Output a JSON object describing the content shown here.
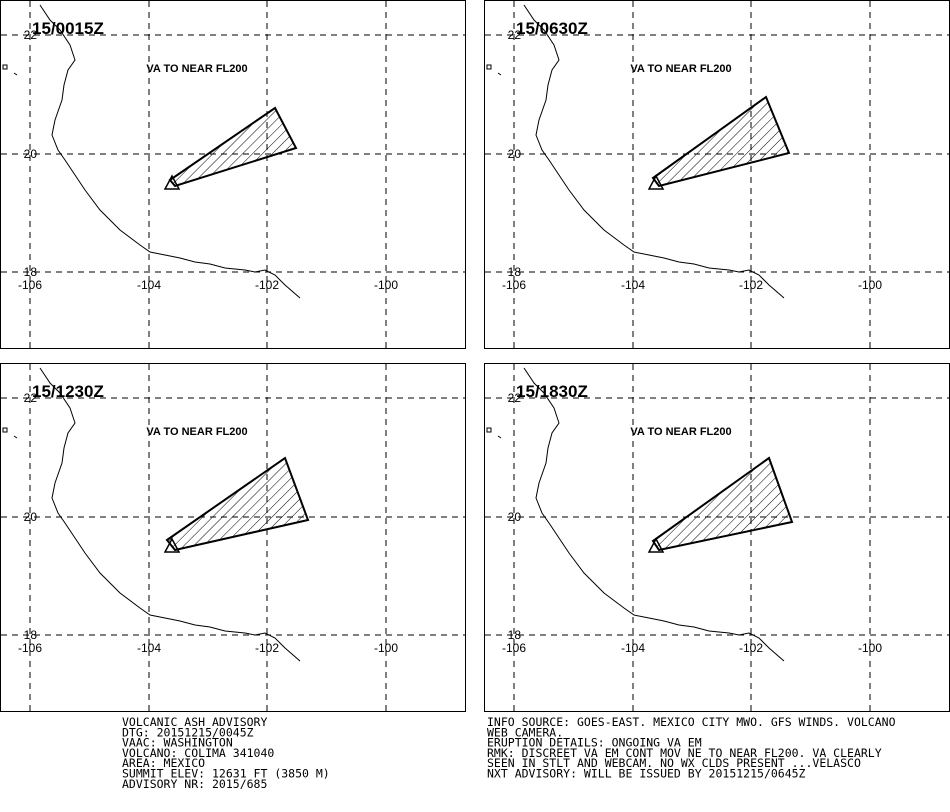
{
  "panels": [
    {
      "time": "15/0015Z",
      "annotation": "VA TO NEAR FL200"
    },
    {
      "time": "15/0630Z",
      "annotation": "VA TO NEAR FL200"
    },
    {
      "time": "15/1230Z",
      "annotation": "VA TO NEAR FL200"
    },
    {
      "time": "15/1830Z",
      "annotation": "VA TO NEAR FL200"
    }
  ],
  "axes": {
    "lat_labels": [
      "22",
      "20",
      "18"
    ],
    "lon_labels": [
      "-106",
      "-104",
      "-102",
      "-100"
    ]
  },
  "advisory": {
    "left": [
      "VOLCANIC ASH ADVISORY",
      "DTG: 20151215/0045Z",
      "VAAC: WASHINGTON",
      "VOLCANO: COLIMA 341040",
      "AREA: MEXICO",
      "SUMMIT ELEV: 12631 FT (3850 M)",
      "ADVISORY NR: 2015/685"
    ],
    "right": [
      "INFO SOURCE: GOES-EAST. MEXICO CITY MWO. GFS WINDS. VOLCANO",
      "WEB CAMERA.",
      "ERUPTION DETAILS: ONGOING VA EM",
      "RMK: DISCREET VA EM CONT MOV NE TO NEAR FL200. VA CLEARLY",
      "SEEN IN STLT AND WEBCAM. NO WX CLDS PRESENT ...VELASCO",
      "NXT ADVISORY: WILL BE ISSUED BY 20151215/0645Z"
    ]
  }
}
